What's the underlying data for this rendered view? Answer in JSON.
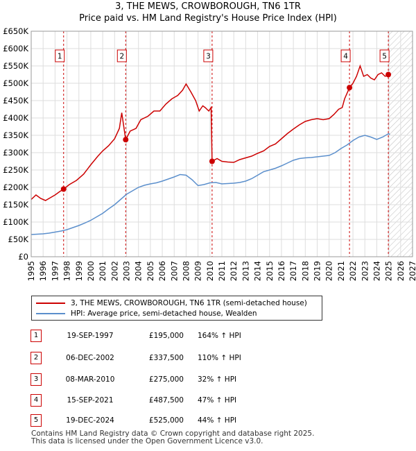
{
  "title_line1": "3, THE MEWS, CROWBOROUGH, TN6 1TR",
  "title_line2": "Price paid vs. HM Land Registry's House Price Index (HPI)",
  "colors": {
    "property": "#cc0000",
    "hpi": "#5b8fcc",
    "grid": "#dddddd",
    "plot_bg": "#ffffff",
    "marker_line": "#cc0000"
  },
  "chart_data": {
    "type": "line",
    "title": "3, THE MEWS, CROWBOROUGH, TN6 1TR",
    "subtitle": "Price paid vs. HM Land Registry's House Price Index (HPI)",
    "xlabel": "",
    "ylabel": "",
    "xlim": [
      1995,
      2027
    ],
    "ylim": [
      0,
      650000
    ],
    "x_ticks": [
      1995,
      1996,
      1997,
      1998,
      1999,
      2000,
      2001,
      2002,
      2003,
      2004,
      2005,
      2006,
      2007,
      2008,
      2009,
      2010,
      2011,
      2012,
      2013,
      2014,
      2015,
      2016,
      2017,
      2018,
      2019,
      2020,
      2021,
      2022,
      2023,
      2024,
      2025,
      2026,
      2027
    ],
    "y_ticks": [
      {
        "value": 0,
        "label": "£0"
      },
      {
        "value": 50000,
        "label": "£50K"
      },
      {
        "value": 100000,
        "label": "£100K"
      },
      {
        "value": 150000,
        "label": "£150K"
      },
      {
        "value": 200000,
        "label": "£200K"
      },
      {
        "value": 250000,
        "label": "£250K"
      },
      {
        "value": 300000,
        "label": "£300K"
      },
      {
        "value": 350000,
        "label": "£350K"
      },
      {
        "value": 400000,
        "label": "£400K"
      },
      {
        "value": 450000,
        "label": "£450K"
      },
      {
        "value": 500000,
        "label": "£500K"
      },
      {
        "value": 550000,
        "label": "£550K"
      },
      {
        "value": 600000,
        "label": "£600K"
      },
      {
        "value": 650000,
        "label": "£650K"
      }
    ],
    "grid": true,
    "hatched_from": 2025,
    "series": [
      {
        "name": "3, THE MEWS, CROWBOROUGH, TN6 1TR (semi-detached house)",
        "color": "#cc0000",
        "x": [
          1995.0,
          1995.4,
          1995.8,
          1996.2,
          1996.6,
          1997.0,
          1997.4,
          1997.72,
          1998.2,
          1998.8,
          1999.4,
          2000.0,
          2000.6,
          2001.0,
          2001.5,
          2002.0,
          2002.4,
          2002.6,
          2002.93,
          2003.3,
          2003.8,
          2004.2,
          2004.8,
          2005.3,
          2005.8,
          2006.3,
          2006.8,
          2007.3,
          2007.7,
          2008.0,
          2008.4,
          2008.8,
          2009.1,
          2009.4,
          2009.6,
          2009.9,
          2010.1,
          2010.18,
          2010.6,
          2011.0,
          2011.5,
          2012.0,
          2012.5,
          2013.0,
          2013.5,
          2014.0,
          2014.5,
          2015.0,
          2015.5,
          2016.0,
          2016.5,
          2017.0,
          2017.5,
          2018.0,
          2018.5,
          2019.0,
          2019.5,
          2020.0,
          2020.4,
          2020.8,
          2021.1,
          2021.3,
          2021.71,
          2022.0,
          2022.3,
          2022.6,
          2022.9,
          2023.2,
          2023.5,
          2023.8,
          2024.1,
          2024.4,
          2024.7,
          2024.97,
          2025.1
        ],
        "values": [
          165000,
          178000,
          168000,
          162000,
          170000,
          178000,
          188000,
          195000,
          208000,
          220000,
          238000,
          265000,
          290000,
          305000,
          320000,
          340000,
          370000,
          415000,
          337500,
          362000,
          370000,
          395000,
          405000,
          420000,
          420000,
          440000,
          455000,
          465000,
          480000,
          498000,
          475000,
          450000,
          420000,
          435000,
          430000,
          420000,
          430000,
          275000,
          283000,
          275000,
          273000,
          272000,
          280000,
          285000,
          290000,
          298000,
          305000,
          318000,
          325000,
          340000,
          355000,
          368000,
          380000,
          390000,
          395000,
          398000,
          395000,
          398000,
          410000,
          425000,
          430000,
          455000,
          487500,
          500000,
          520000,
          550000,
          520000,
          525000,
          515000,
          510000,
          525000,
          530000,
          520000,
          525000,
          530000
        ]
      },
      {
        "name": "HPI: Average price, semi-detached house, Wealden",
        "color": "#5b8fcc",
        "x": [
          1995.0,
          1995.5,
          1996.0,
          1996.5,
          1997.0,
          1997.5,
          1998.0,
          1998.5,
          1999.0,
          1999.5,
          2000.0,
          2000.5,
          2001.0,
          2001.5,
          2002.0,
          2002.5,
          2003.0,
          2003.5,
          2004.0,
          2004.5,
          2005.0,
          2005.5,
          2006.0,
          2006.5,
          2007.0,
          2007.5,
          2008.0,
          2008.5,
          2009.0,
          2009.5,
          2010.0,
          2010.5,
          2011.0,
          2011.5,
          2012.0,
          2012.5,
          2013.0,
          2013.5,
          2014.0,
          2014.5,
          2015.0,
          2015.5,
          2016.0,
          2016.5,
          2017.0,
          2017.5,
          2018.0,
          2018.5,
          2019.0,
          2019.5,
          2020.0,
          2020.5,
          2021.0,
          2021.5,
          2022.0,
          2022.5,
          2023.0,
          2023.5,
          2024.0,
          2024.5,
          2025.0,
          2025.1
        ],
        "values": [
          64000,
          65000,
          66000,
          68000,
          71000,
          74000,
          78000,
          84000,
          90000,
          97000,
          105000,
          115000,
          125000,
          138000,
          150000,
          165000,
          180000,
          190000,
          200000,
          206000,
          210000,
          213000,
          218000,
          224000,
          230000,
          237000,
          235000,
          222000,
          205000,
          208000,
          213000,
          214000,
          210000,
          211000,
          212000,
          214000,
          218000,
          225000,
          235000,
          245000,
          250000,
          255000,
          262000,
          270000,
          278000,
          283000,
          285000,
          286000,
          288000,
          290000,
          292000,
          300000,
          312000,
          322000,
          335000,
          345000,
          350000,
          345000,
          338000,
          345000,
          355000,
          352000
        ]
      }
    ],
    "markers": [
      {
        "label": "1",
        "x": 1997.72,
        "value": 195000
      },
      {
        "label": "2",
        "x": 2002.93,
        "value": 337500
      },
      {
        "label": "3",
        "x": 2010.18,
        "value": 275000
      },
      {
        "label": "4",
        "x": 2021.71,
        "value": 487500
      },
      {
        "label": "5",
        "x": 2024.97,
        "value": 525000
      }
    ],
    "legend_position": "below"
  },
  "legend": {
    "property_label": "3, THE MEWS, CROWBOROUGH, TN6 1TR (semi-detached house)",
    "hpi_label": "HPI: Average price, semi-detached house, Wealden"
  },
  "sales": [
    {
      "num": "1",
      "date": "19-SEP-1997",
      "price": "£195,000",
      "hpi": "164% ↑ HPI"
    },
    {
      "num": "2",
      "date": "06-DEC-2002",
      "price": "£337,500",
      "hpi": "110% ↑ HPI"
    },
    {
      "num": "3",
      "date": "08-MAR-2010",
      "price": "£275,000",
      "hpi": "32% ↑ HPI"
    },
    {
      "num": "4",
      "date": "15-SEP-2021",
      "price": "£487,500",
      "hpi": "47% ↑ HPI"
    },
    {
      "num": "5",
      "date": "19-DEC-2024",
      "price": "£525,000",
      "hpi": "44% ↑ HPI"
    }
  ],
  "footer_line1": "Contains HM Land Registry data © Crown copyright and database right 2025.",
  "footer_line2": "This data is licensed under the Open Government Licence v3.0."
}
